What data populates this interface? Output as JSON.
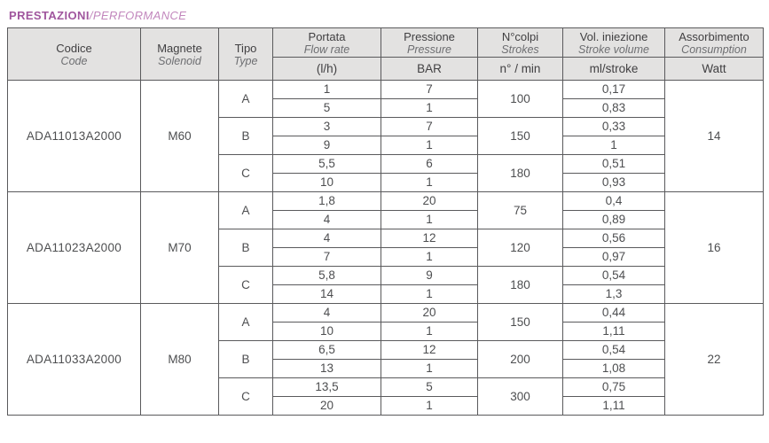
{
  "title": {
    "main": "PRESTAZIONI",
    "sub": "/PERFORMANCE"
  },
  "colors": {
    "title_main": "#a0569e",
    "title_sub": "#c287bd",
    "header_bg": "#e3e2e1",
    "border": "#5a5a5c",
    "text": "#4d4e50"
  },
  "header": {
    "codice": {
      "it": "Codice",
      "en": "Code"
    },
    "magnete": {
      "it": "Magnete",
      "en": "Solenoid"
    },
    "tipo": {
      "it": "Tipo",
      "en": "Type"
    },
    "portata": {
      "it": "Portata",
      "en": "Flow rate",
      "unit": "(l/h)"
    },
    "pressione": {
      "it": "Pressione",
      "en": "Pressure",
      "unit": "BAR"
    },
    "colpi": {
      "it": "N°colpi",
      "en": "Strokes",
      "unit": "n° / min"
    },
    "iniezione": {
      "it": "Vol. iniezione",
      "en": "Stroke volume",
      "unit": "ml/stroke"
    },
    "assorbimento": {
      "it": "Assorbimento",
      "en": "Consumption",
      "unit": "Watt"
    }
  },
  "models": [
    {
      "code": "ADA11013A2000",
      "solenoid": "M60",
      "watt": "14",
      "types": [
        {
          "type": "A",
          "strokes": "100",
          "rows": [
            {
              "flow": "1",
              "bar": "7",
              "ml": "0,17"
            },
            {
              "flow": "5",
              "bar": "1",
              "ml": "0,83"
            }
          ]
        },
        {
          "type": "B",
          "strokes": "150",
          "rows": [
            {
              "flow": "3",
              "bar": "7",
              "ml": "0,33"
            },
            {
              "flow": "9",
              "bar": "1",
              "ml": "1"
            }
          ]
        },
        {
          "type": "C",
          "strokes": "180",
          "rows": [
            {
              "flow": "5,5",
              "bar": "6",
              "ml": "0,51"
            },
            {
              "flow": "10",
              "bar": "1",
              "ml": "0,93"
            }
          ]
        }
      ]
    },
    {
      "code": "ADA11023A2000",
      "solenoid": "M70",
      "watt": "16",
      "types": [
        {
          "type": "A",
          "strokes": "75",
          "rows": [
            {
              "flow": "1,8",
              "bar": "20",
              "ml": "0,4"
            },
            {
              "flow": "4",
              "bar": "1",
              "ml": "0,89"
            }
          ]
        },
        {
          "type": "B",
          "strokes": "120",
          "rows": [
            {
              "flow": "4",
              "bar": "12",
              "ml": "0,56"
            },
            {
              "flow": "7",
              "bar": "1",
              "ml": "0,97"
            }
          ]
        },
        {
          "type": "C",
          "strokes": "180",
          "rows": [
            {
              "flow": "5,8",
              "bar": "9",
              "ml": "0,54"
            },
            {
              "flow": "14",
              "bar": "1",
              "ml": "1,3"
            }
          ]
        }
      ]
    },
    {
      "code": "ADA11033A2000",
      "solenoid": "M80",
      "watt": "22",
      "types": [
        {
          "type": "A",
          "strokes": "150",
          "rows": [
            {
              "flow": "4",
              "bar": "20",
              "ml": "0,44"
            },
            {
              "flow": "10",
              "bar": "1",
              "ml": "1,11"
            }
          ]
        },
        {
          "type": "B",
          "strokes": "200",
          "rows": [
            {
              "flow": "6,5",
              "bar": "12",
              "ml": "0,54"
            },
            {
              "flow": "13",
              "bar": "1",
              "ml": "1,08"
            }
          ]
        },
        {
          "type": "C",
          "strokes": "300",
          "rows": [
            {
              "flow": "13,5",
              "bar": "5",
              "ml": "0,75"
            },
            {
              "flow": "20",
              "bar": "1",
              "ml": "1,11"
            }
          ]
        }
      ]
    }
  ]
}
